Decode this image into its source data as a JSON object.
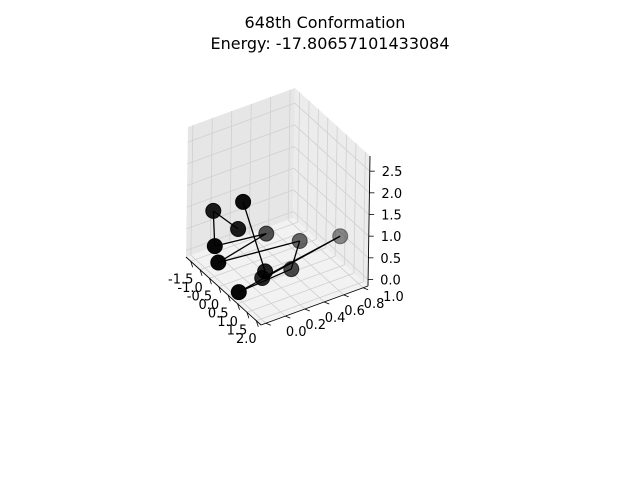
{
  "chart_data": {
    "type": "scatter",
    "projection": "3d",
    "title_line1": "648th Conformation",
    "title_line2": "Energy: -17.80657101433084",
    "xlabel": "",
    "ylabel": "",
    "zlabel": "",
    "xlim": [
      -1.75,
      2.25
    ],
    "ylim": [
      -0.05,
      1.05
    ],
    "zlim": [
      -0.15,
      2.85
    ],
    "xticks": [
      "-1.5",
      "-1.0",
      "-0.5",
      "0.0",
      "0.5",
      "1.0",
      "1.5",
      "2.0"
    ],
    "yticks": [
      "0.0",
      "0.2",
      "0.4",
      "0.6",
      "0.8",
      "1.0"
    ],
    "zticks": [
      "0.0",
      "0.5",
      "1.0",
      "1.5",
      "2.0",
      "2.5"
    ],
    "grid": true,
    "marker_color": "#000000",
    "line_color": "#000000",
    "points": [
      {
        "x": -0.05,
        "y": 0.15,
        "z": 1.0
      },
      {
        "x": -1.37,
        "y": 0.15,
        "z": 0.9
      },
      {
        "x": -0.5,
        "y": 0.0,
        "z": 0.55
      },
      {
        "x": -0.6,
        "y": 0.55,
        "z": 0.35
      },
      {
        "x": -0.3,
        "y": 0.0,
        "z": 0.25
      },
      {
        "x": 0.4,
        "y": 0.7,
        "z": 0.45
      },
      {
        "x": 1.0,
        "y": 0.5,
        "z": 0.2
      },
      {
        "x": 0.8,
        "y": 0.0,
        "z": 0.0
      },
      {
        "x": 1.0,
        "y": 1.0,
        "z": 0.55
      },
      {
        "x": 0.75,
        "y": 0.25,
        "z": 0.1
      },
      {
        "x": 1.15,
        "y": 0.2,
        "z": 0.45
      },
      {
        "x": 0.7,
        "y": 0.05,
        "z": 2.0
      }
    ]
  }
}
